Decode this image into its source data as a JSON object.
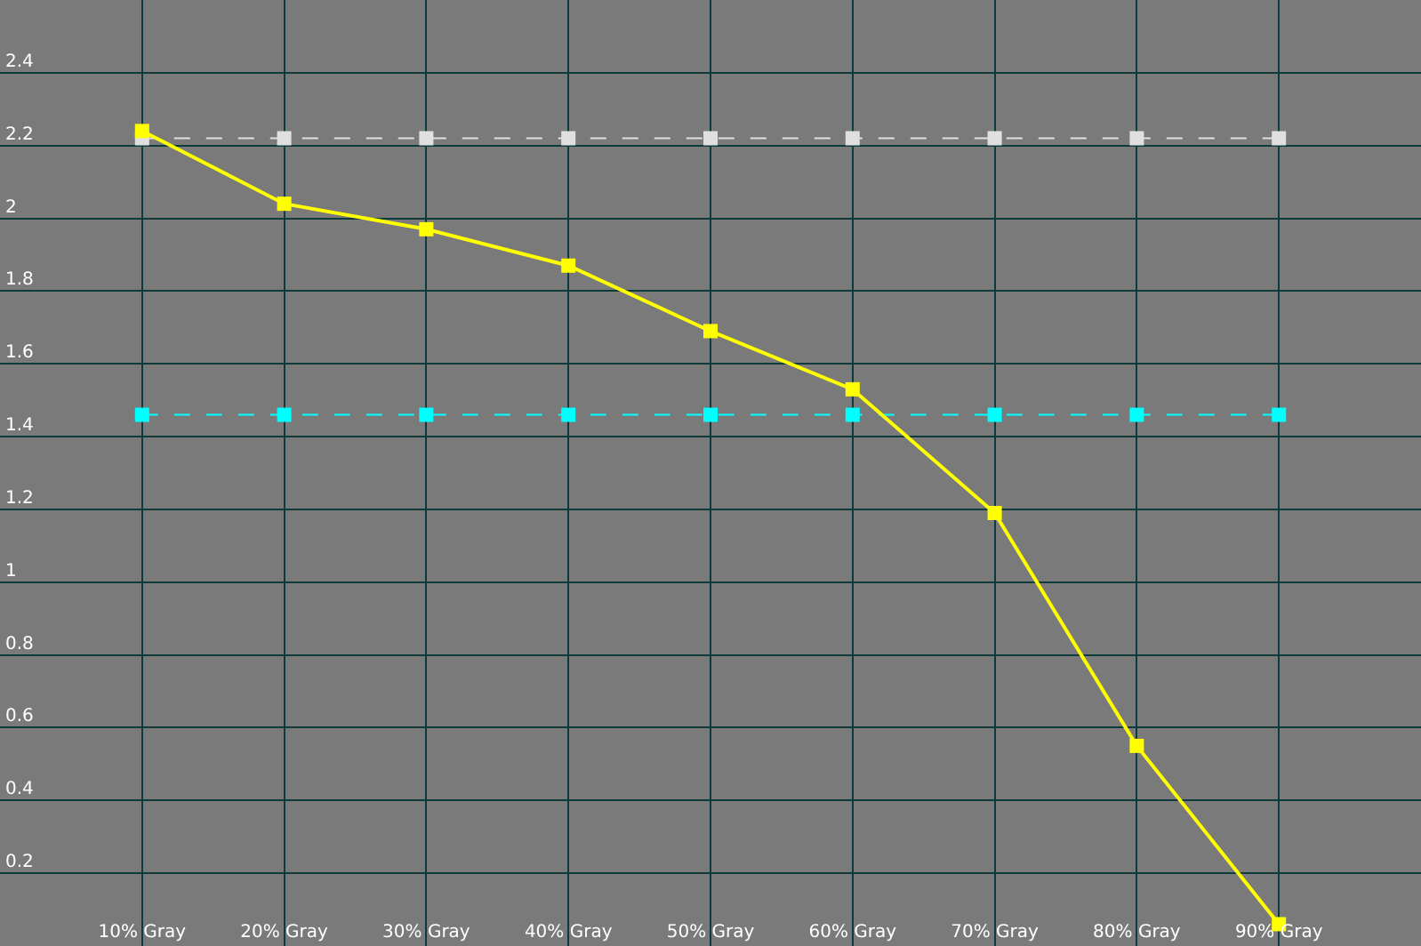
{
  "chart_data": {
    "type": "line",
    "categories": [
      "10% Gray",
      "20% Gray",
      "30% Gray",
      "40% Gray",
      "50% Gray",
      "60% Gray",
      "70% Gray",
      "80% Gray",
      "90% Gray"
    ],
    "series": [
      {
        "color": "#e0e0e0",
        "line_style": "dashed",
        "values": [
          2.22,
          2.22,
          2.22,
          2.22,
          2.22,
          2.22,
          2.22,
          2.22,
          2.22
        ]
      },
      {
        "color": "#00ffff",
        "line_style": "dashed",
        "values": [
          1.46,
          1.46,
          1.46,
          1.46,
          1.46,
          1.46,
          1.46,
          1.46,
          1.46
        ]
      },
      {
        "color": "#ffff00",
        "line_style": "solid",
        "values": [
          2.24,
          2.04,
          1.97,
          1.87,
          1.69,
          1.53,
          1.19,
          0.55,
          0.06
        ]
      }
    ],
    "ylim": [
      0,
      2.6
    ],
    "yticks": [
      0.2,
      0.4,
      0.6,
      0.8,
      1,
      1.2,
      1.4,
      1.6,
      1.8,
      2,
      2.2,
      2.4
    ],
    "grid": true,
    "marker": "square",
    "legend": false
  }
}
